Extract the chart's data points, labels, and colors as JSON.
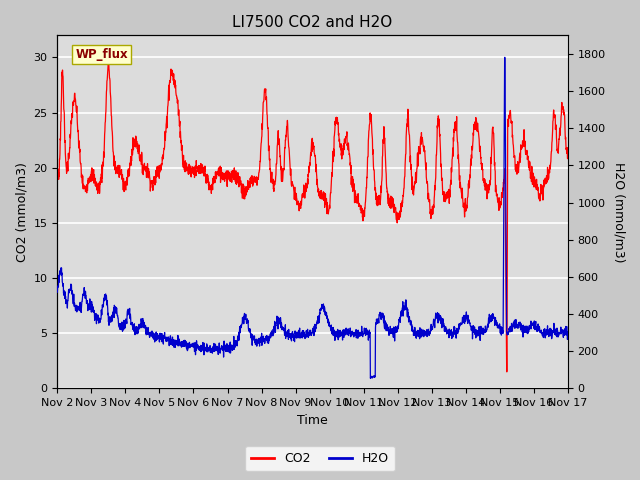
{
  "title": "LI7500 CO2 and H2O",
  "xlabel": "Time",
  "ylabel_left": "CO2 (mmol/m3)",
  "ylabel_right": "H2O (mmol/m3)",
  "annotation_text": "WP_flux",
  "annotation_bg": "#ffffcc",
  "annotation_border": "#aaa800",
  "co2_color": "#ff0000",
  "h2o_color": "#0000cc",
  "fig_bg": "#c8c8c8",
  "plot_bg": "#e0e0e0",
  "x_tick_labels": [
    "Nov 2",
    "Nov 3",
    "Nov 4",
    "Nov 5",
    "Nov 6",
    "Nov 7",
    "Nov 8",
    "Nov 9",
    "Nov 10",
    "Nov 11",
    "Nov 12",
    "Nov 13",
    "Nov 14",
    "Nov 15",
    "Nov 16",
    "Nov 17"
  ],
  "ylim_left": [
    0,
    32
  ],
  "ylim_right": [
    0,
    1900
  ],
  "yticks_left": [
    0,
    5,
    10,
    15,
    20,
    25,
    30
  ],
  "yticks_right": [
    0,
    200,
    400,
    600,
    800,
    1000,
    1200,
    1400,
    1600,
    1800
  ],
  "legend_labels": [
    "CO2",
    "H2O"
  ],
  "legend_colors": [
    "#ff0000",
    "#0000cc"
  ]
}
